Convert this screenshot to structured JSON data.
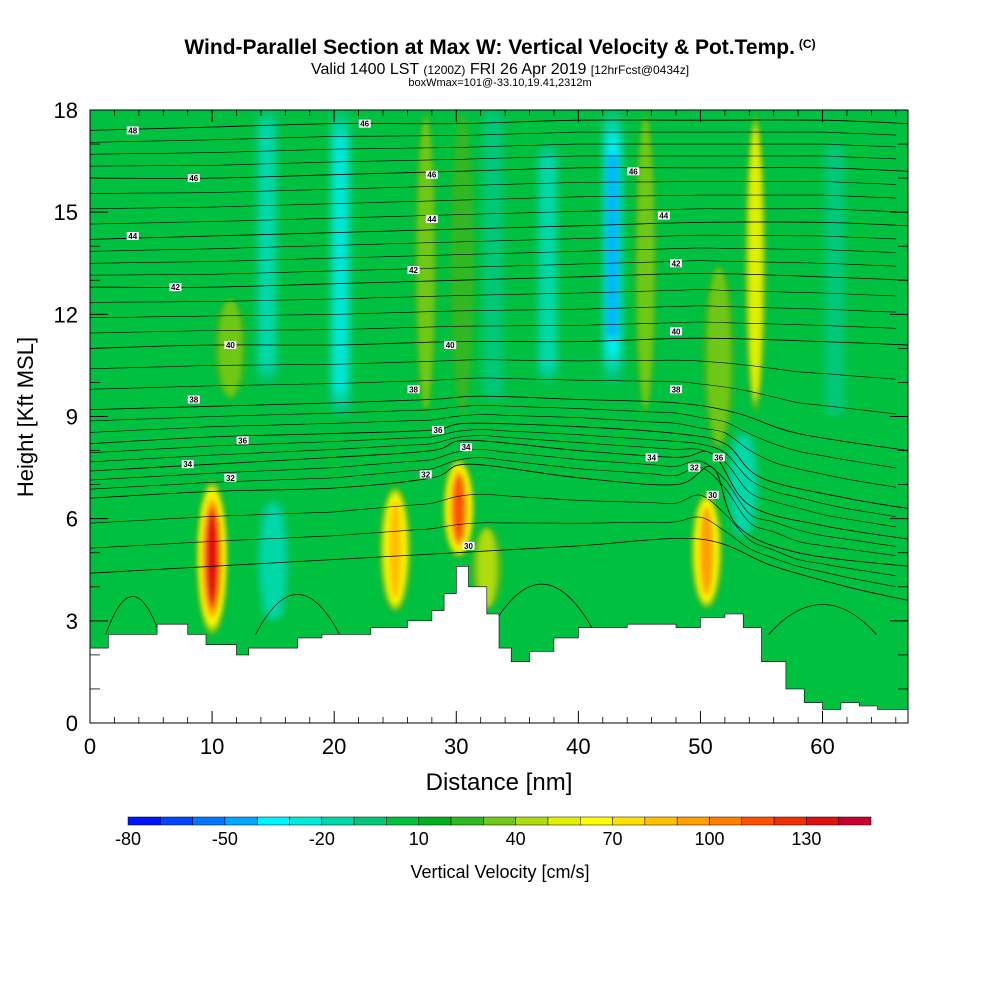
{
  "title": "Wind-Parallel Section at Max W: Vertical Velocity & Pot.Temp.",
  "title_mark": "(C)",
  "subtitle": {
    "part1": "Valid 1400 LST",
    "part2": "(1200Z)",
    "part3": "FRI 26 Apr 2019",
    "part4": "[12hrFcst@0434z]"
  },
  "box_line": "boxWmax=101@-33.10,19.41,2312m",
  "colorbar_label": "Vertical Velocity [cm/s]",
  "chart_data": {
    "type": "heatmap",
    "xlabel": "Distance [nm]",
    "ylabel": "Height [Kft MSL]",
    "xlim": [
      0,
      67
    ],
    "ylim": [
      0,
      18
    ],
    "x_ticks": [
      0,
      10,
      20,
      30,
      40,
      50,
      60
    ],
    "y_ticks": [
      0,
      3,
      6,
      9,
      12,
      15,
      18
    ],
    "colorbar": {
      "tick_labels": [
        "-80",
        "-50",
        "-20",
        "10",
        "40",
        "70",
        "100",
        "130"
      ],
      "colors": [
        "#0014ff",
        "#0046ff",
        "#0078ff",
        "#00a8ff",
        "#00f4ff",
        "#00e8d8",
        "#00d8a8",
        "#00c878",
        "#00c040",
        "#00b020",
        "#30b820",
        "#70c818",
        "#b0dc10",
        "#e0f000",
        "#ffff00",
        "#ffe000",
        "#ffc000",
        "#ffa000",
        "#ff8000",
        "#ff5000",
        "#f03000",
        "#e01010",
        "#c80030"
      ]
    },
    "updrafts": [
      {
        "x": 10.0,
        "y_bottom": 2.5,
        "y_top": 7.2,
        "peak": 130
      },
      {
        "x": 25.0,
        "y_bottom": 3.2,
        "y_top": 7.0,
        "peak": 80
      },
      {
        "x": 30.2,
        "y_bottom": 4.8,
        "y_top": 7.8,
        "peak": 110
      },
      {
        "x": 50.5,
        "y_bottom": 3.3,
        "y_top": 6.8,
        "peak": 90
      },
      {
        "x": 32.5,
        "y_bottom": 3.3,
        "y_top": 5.8,
        "peak": 40
      },
      {
        "x": 27.5,
        "y_bottom": 9.0,
        "y_top": 18.0,
        "peak": 30
      },
      {
        "x": 30.5,
        "y_bottom": 9.0,
        "y_top": 18.0,
        "peak": 25
      },
      {
        "x": 45.5,
        "y_bottom": 9.0,
        "y_top": 18.0,
        "peak": 30
      },
      {
        "x": 54.5,
        "y_bottom": 9.0,
        "y_top": 18.0,
        "peak": 50
      },
      {
        "x": 51.5,
        "y_bottom": 8.0,
        "y_top": 13.5,
        "peak": 35
      },
      {
        "x": 11.5,
        "y_bottom": 9.5,
        "y_top": 12.5,
        "peak": 30
      }
    ],
    "downdrafts": [
      {
        "x": 15.0,
        "y_bottom": 3.0,
        "y_top": 6.5,
        "peak": -25
      },
      {
        "x": 20.5,
        "y_bottom": 9.0,
        "y_top": 18.0,
        "peak": -30
      },
      {
        "x": 14.5,
        "y_bottom": 10.0,
        "y_top": 18.0,
        "peak": -20
      },
      {
        "x": 33.0,
        "y_bottom": 9.5,
        "y_top": 18.0,
        "peak": -15
      },
      {
        "x": 42.8,
        "y_bottom": 10.0,
        "y_top": 18.0,
        "peak": -50
      },
      {
        "x": 37.5,
        "y_bottom": 10.0,
        "y_top": 17.0,
        "peak": -20
      },
      {
        "x": 53.5,
        "y_bottom": 5.5,
        "y_top": 8.5,
        "peak": -25
      },
      {
        "x": 61.0,
        "y_bottom": 9.0,
        "y_top": 17.0,
        "peak": -15
      }
    ],
    "terrain": [
      [
        0,
        2.2
      ],
      [
        1.5,
        2.6
      ],
      [
        5.5,
        2.9
      ],
      [
        8,
        2.6
      ],
      [
        9.5,
        2.3
      ],
      [
        12,
        2.0
      ],
      [
        13,
        2.2
      ],
      [
        17,
        2.5
      ],
      [
        19,
        2.6
      ],
      [
        23,
        2.8
      ],
      [
        26,
        3.0
      ],
      [
        28,
        3.3
      ],
      [
        29,
        3.8
      ],
      [
        30,
        4.6
      ],
      [
        31,
        4.0
      ],
      [
        32.5,
        3.2
      ],
      [
        33.5,
        2.2
      ],
      [
        34.5,
        1.8
      ],
      [
        36,
        2.1
      ],
      [
        38,
        2.5
      ],
      [
        40,
        2.8
      ],
      [
        44,
        2.9
      ],
      [
        48,
        2.8
      ],
      [
        50,
        3.1
      ],
      [
        52,
        3.2
      ],
      [
        53.5,
        2.8
      ],
      [
        55,
        1.8
      ],
      [
        57,
        1.0
      ],
      [
        58.5,
        0.6
      ],
      [
        60,
        0.4
      ],
      [
        61.5,
        0.6
      ],
      [
        63,
        0.5
      ],
      [
        64.5,
        0.4
      ],
      [
        67,
        0.3
      ]
    ],
    "theta_contours": [
      {
        "label": "30",
        "profile": [
          [
            0,
            4.4
          ],
          [
            10,
            4.6
          ],
          [
            20,
            4.8
          ],
          [
            30,
            5.0
          ],
          [
            40,
            5.2
          ],
          [
            50,
            5.4
          ],
          [
            56,
            4.6
          ],
          [
            62,
            4.0
          ],
          [
            67,
            3.6
          ]
        ]
      },
      {
        "label": "32",
        "profile": [
          [
            0,
            6.6
          ],
          [
            10,
            6.8
          ],
          [
            20,
            6.9
          ],
          [
            28,
            7.2
          ],
          [
            31,
            7.6
          ],
          [
            40,
            7.2
          ],
          [
            48,
            7.0
          ],
          [
            51,
            7.5
          ],
          [
            53,
            5.8
          ],
          [
            58,
            5.0
          ],
          [
            67,
            4.6
          ]
        ]
      },
      {
        "label": "34",
        "profile": [
          [
            0,
            7.4
          ],
          [
            10,
            7.6
          ],
          [
            20,
            7.8
          ],
          [
            28,
            8.0
          ],
          [
            31,
            8.3
          ],
          [
            40,
            8.0
          ],
          [
            48,
            7.8
          ],
          [
            51,
            7.9
          ],
          [
            54,
            6.4
          ],
          [
            60,
            5.8
          ],
          [
            67,
            5.4
          ]
        ]
      },
      {
        "label": "36",
        "profile": [
          [
            0,
            8.2
          ],
          [
            10,
            8.4
          ],
          [
            20,
            8.5
          ],
          [
            28,
            8.6
          ],
          [
            31,
            8.8
          ],
          [
            40,
            8.7
          ],
          [
            48,
            8.5
          ],
          [
            52,
            8.2
          ],
          [
            55,
            7.2
          ],
          [
            62,
            6.6
          ],
          [
            67,
            6.3
          ]
        ]
      },
      {
        "label": "38",
        "profile": [
          [
            0,
            9.2
          ],
          [
            10,
            9.3
          ],
          [
            20,
            9.4
          ],
          [
            28,
            9.5
          ],
          [
            32,
            9.6
          ],
          [
            40,
            9.5
          ],
          [
            48,
            9.4
          ],
          [
            53,
            9.1
          ],
          [
            58,
            8.5
          ],
          [
            67,
            8.0
          ]
        ]
      },
      {
        "label": "40",
        "profile": [
          [
            0,
            11.0
          ],
          [
            10,
            11.1
          ],
          [
            20,
            11.1
          ],
          [
            30,
            11.2
          ],
          [
            40,
            11.2
          ],
          [
            50,
            11.3
          ],
          [
            60,
            11.2
          ],
          [
            67,
            11.1
          ]
        ]
      },
      {
        "label": "42",
        "profile": [
          [
            0,
            12.8
          ],
          [
            10,
            12.8
          ],
          [
            20,
            12.9
          ],
          [
            30,
            13.0
          ],
          [
            40,
            13.1
          ],
          [
            50,
            13.2
          ],
          [
            60,
            13.1
          ],
          [
            67,
            13.0
          ]
        ]
      },
      {
        "label": "44",
        "profile": [
          [
            0,
            14.2
          ],
          [
            10,
            14.3
          ],
          [
            20,
            14.4
          ],
          [
            30,
            14.5
          ],
          [
            40,
            14.6
          ],
          [
            50,
            14.7
          ],
          [
            60,
            14.7
          ],
          [
            67,
            14.6
          ]
        ]
      },
      {
        "label": "46",
        "profile": [
          [
            0,
            16.0
          ],
          [
            10,
            16.0
          ],
          [
            20,
            16.1
          ],
          [
            30,
            16.2
          ],
          [
            40,
            16.3
          ],
          [
            50,
            16.3
          ],
          [
            60,
            16.3
          ],
          [
            67,
            16.2
          ]
        ]
      },
      {
        "label": "48",
        "profile": [
          [
            0,
            17.4
          ],
          [
            10,
            17.5
          ],
          [
            20,
            17.6
          ],
          [
            30,
            17.6
          ],
          [
            40,
            17.7
          ],
          [
            50,
            17.7
          ],
          [
            60,
            17.7
          ],
          [
            67,
            17.6
          ]
        ]
      }
    ],
    "theta_labels": [
      {
        "text": "48",
        "x": 3.5,
        "y": 17.4
      },
      {
        "text": "46",
        "x": 22.5,
        "y": 17.6
      },
      {
        "text": "46",
        "x": 8.5,
        "y": 16.0
      },
      {
        "text": "46",
        "x": 28.0,
        "y": 16.1
      },
      {
        "text": "46",
        "x": 44.5,
        "y": 16.2
      },
      {
        "text": "44",
        "x": 3.5,
        "y": 14.3
      },
      {
        "text": "44",
        "x": 28.0,
        "y": 14.8
      },
      {
        "text": "44",
        "x": 47.0,
        "y": 14.9
      },
      {
        "text": "42",
        "x": 7.0,
        "y": 12.8
      },
      {
        "text": "42",
        "x": 26.5,
        "y": 13.3
      },
      {
        "text": "42",
        "x": 48.0,
        "y": 13.5
      },
      {
        "text": "40",
        "x": 11.5,
        "y": 11.1
      },
      {
        "text": "40",
        "x": 29.5,
        "y": 11.1
      },
      {
        "text": "40",
        "x": 48.0,
        "y": 11.5
      },
      {
        "text": "38",
        "x": 8.5,
        "y": 9.5
      },
      {
        "text": "38",
        "x": 26.5,
        "y": 9.8
      },
      {
        "text": "38",
        "x": 48.0,
        "y": 9.8
      },
      {
        "text": "36",
        "x": 12.5,
        "y": 8.3
      },
      {
        "text": "36",
        "x": 28.5,
        "y": 8.6
      },
      {
        "text": "36",
        "x": 51.5,
        "y": 7.8
      },
      {
        "text": "34",
        "x": 8.0,
        "y": 7.6
      },
      {
        "text": "34",
        "x": 30.8,
        "y": 8.1
      },
      {
        "text": "34",
        "x": 46.0,
        "y": 7.8
      },
      {
        "text": "32",
        "x": 11.5,
        "y": 7.2
      },
      {
        "text": "32",
        "x": 27.5,
        "y": 7.3
      },
      {
        "text": "32",
        "x": 49.5,
        "y": 7.5
      },
      {
        "text": "30",
        "x": 31.0,
        "y": 5.2
      },
      {
        "text": "30",
        "x": 51.0,
        "y": 6.7
      }
    ]
  }
}
